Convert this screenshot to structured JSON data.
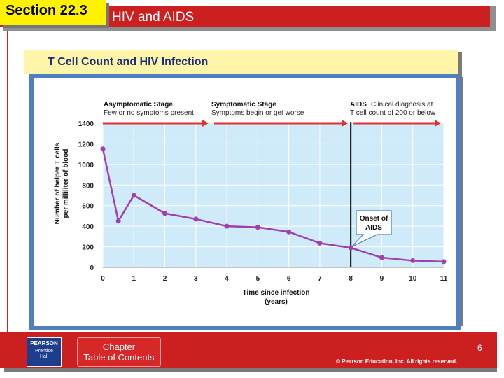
{
  "header": {
    "section": "Section 22.3",
    "title": "HIV and AIDS"
  },
  "figure": {
    "title": "T Cell Count and HIV Infection"
  },
  "chart_data": {
    "type": "line",
    "title": "T Cell Count and HIV Infection",
    "xlabel": "Time since infection",
    "xlabel_unit": "(years)",
    "ylabel_line1": "Number of helper T cells",
    "ylabel_line2": "per milliliter of blood",
    "xlim": [
      0,
      11
    ],
    "ylim": [
      0,
      1400
    ],
    "xticks": [
      0,
      1,
      2,
      3,
      4,
      5,
      6,
      7,
      8,
      9,
      10,
      11
    ],
    "yticks": [
      0,
      200,
      400,
      600,
      800,
      1000,
      1200,
      1400
    ],
    "grid": true,
    "series": [
      {
        "x": [
          0,
          0.5,
          1,
          2,
          3,
          4,
          5,
          6,
          7,
          8,
          9,
          10,
          11
        ],
        "y": [
          1150,
          450,
          700,
          525,
          470,
          400,
          390,
          345,
          235,
          190,
          95,
          65,
          55
        ]
      }
    ],
    "colors": {
      "line": "#a040b0",
      "plot_bg": "#cfeaf8",
      "grid": "#ffffff",
      "stage_arrow": "#e03030",
      "aids_line": "#000000"
    },
    "stages": [
      {
        "title": "Asymptomatic Stage",
        "desc": "Few or no symptoms present",
        "x_start": 0,
        "x_end": 3.5
      },
      {
        "title": "Symptomatic Stage",
        "desc": "Symptoms begin or get worse",
        "x_start": 3.5,
        "x_end": 8
      },
      {
        "title": "AIDS",
        "desc": "Clinical diagnosis at",
        "desc2": "T cell count of 200 or below",
        "x_start": 8,
        "x_end": 11
      }
    ],
    "aids_onset": {
      "x": 8,
      "label_line1": "Onset of",
      "label_line2": "AIDS"
    }
  },
  "footer": {
    "publisher_line1": "PEARSON",
    "publisher_line2": "Prentice",
    "publisher_line3": "Hall",
    "toc_line1": "Chapter",
    "toc_line2": "Table of Contents",
    "page": "6",
    "copyright": "© Pearson Education, Inc. All rights reserved."
  }
}
